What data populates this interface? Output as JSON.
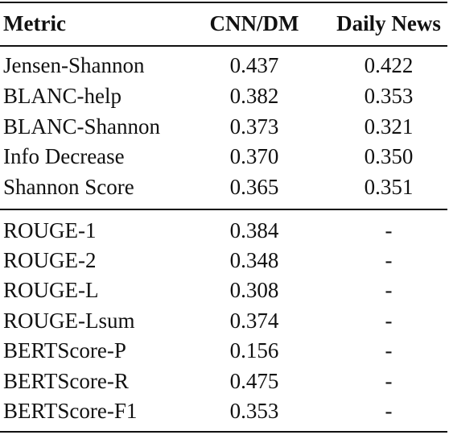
{
  "columns": [
    "Metric",
    "CNN/DM",
    "Daily News"
  ],
  "group1": [
    {
      "metric": "Jensen-Shannon",
      "cnn": "0.437",
      "daily": "0.422"
    },
    {
      "metric": "BLANC-help",
      "cnn": "0.382",
      "daily": "0.353"
    },
    {
      "metric": "BLANC-Shannon",
      "cnn": "0.373",
      "daily": "0.321"
    },
    {
      "metric": "Info Decrease",
      "cnn": "0.370",
      "daily": "0.350"
    },
    {
      "metric": "Shannon Score",
      "cnn": "0.365",
      "daily": "0.351"
    }
  ],
  "group2": [
    {
      "metric": "ROUGE-1",
      "cnn": "0.384",
      "daily": "-"
    },
    {
      "metric": "ROUGE-2",
      "cnn": "0.348",
      "daily": "-"
    },
    {
      "metric": "ROUGE-L",
      "cnn": "0.308",
      "daily": "-"
    },
    {
      "metric": "ROUGE-Lsum",
      "cnn": "0.374",
      "daily": "-"
    },
    {
      "metric": "BERTScore-P",
      "cnn": "0.156",
      "daily": "-"
    },
    {
      "metric": "BERTScore-R",
      "cnn": "0.475",
      "daily": "-"
    },
    {
      "metric": "BERTScore-F1",
      "cnn": "0.353",
      "daily": "-"
    }
  ]
}
